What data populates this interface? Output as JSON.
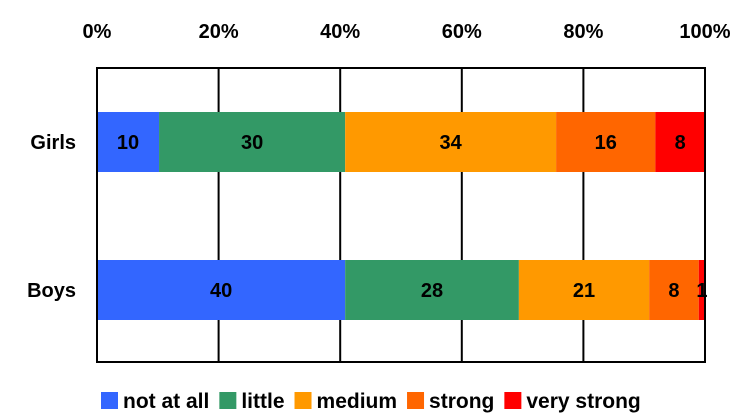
{
  "chart_data": {
    "type": "bar",
    "orientation": "horizontal",
    "stacked": "percent",
    "title": "",
    "xlabel": "",
    "ylabel": "",
    "categories": [
      "Girls",
      "Boys"
    ],
    "series": [
      {
        "name": "not at all",
        "color": "#3366FF",
        "values": [
          10,
          40
        ]
      },
      {
        "name": "little",
        "color": "#339966",
        "values": [
          30,
          28
        ]
      },
      {
        "name": "medium",
        "color": "#FF9900",
        "values": [
          34,
          21
        ]
      },
      {
        "name": "strong",
        "color": "#FF6600",
        "values": [
          16,
          8
        ]
      },
      {
        "name": "very strong",
        "color": "#FF0000",
        "values": [
          8,
          1
        ]
      }
    ],
    "x_ticks": [
      "0%",
      "20%",
      "40%",
      "60%",
      "80%",
      "100%"
    ],
    "x_tick_values": [
      0,
      20,
      40,
      60,
      80,
      100
    ],
    "xlim": [
      0,
      100
    ],
    "grid": "vertical",
    "legend": "bottom"
  }
}
